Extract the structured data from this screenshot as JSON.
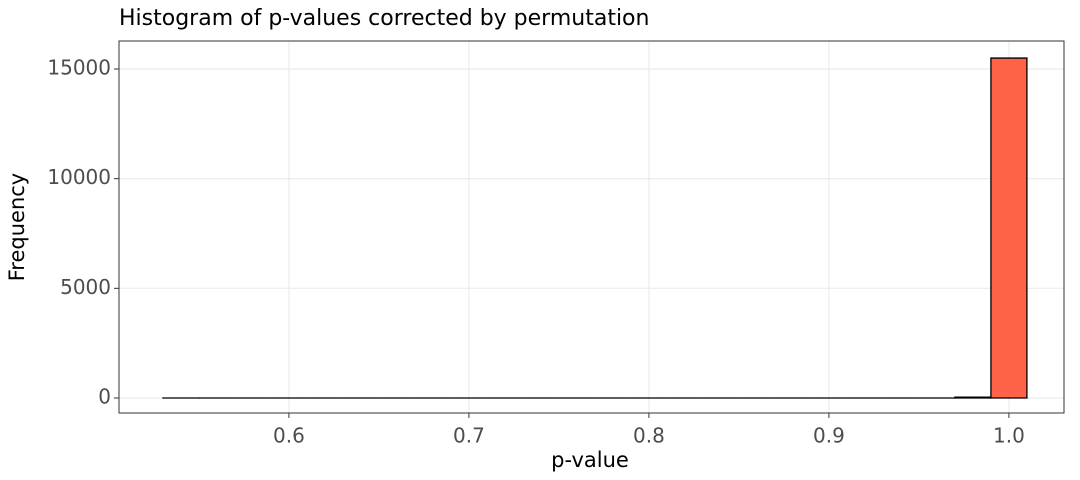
{
  "chart_data": {
    "type": "histogram",
    "title": "Histogram of p-values corrected by permutation",
    "x_label": "p-value",
    "y_label": "Frequency",
    "bins": [
      0.53,
      0.55,
      0.57,
      0.59,
      0.61,
      0.63,
      0.65,
      0.67,
      0.69,
      0.71,
      0.73,
      0.75,
      0.77,
      0.79,
      0.81,
      0.83,
      0.85,
      0.87,
      0.89,
      0.91,
      0.93,
      0.95,
      0.97,
      0.99,
      1.01
    ],
    "counts": [
      1,
      0,
      0,
      0,
      0,
      0,
      0,
      0,
      0,
      0,
      0,
      0,
      0,
      0,
      0,
      0,
      0,
      0,
      0,
      0,
      0,
      0,
      40,
      15500
    ],
    "color": "#ff6347",
    "edge_color": "#000000",
    "xlim": [
      0.5056,
      1.0306
    ],
    "xticks": [
      0.6,
      0.7,
      0.8,
      0.9,
      {
        "value": 1.0,
        "label": "1.0"
      }
    ],
    "ylim": [
      -684,
      16277
    ],
    "yticks": [
      0,
      5000,
      10000,
      15000
    ],
    "grid": true
  }
}
